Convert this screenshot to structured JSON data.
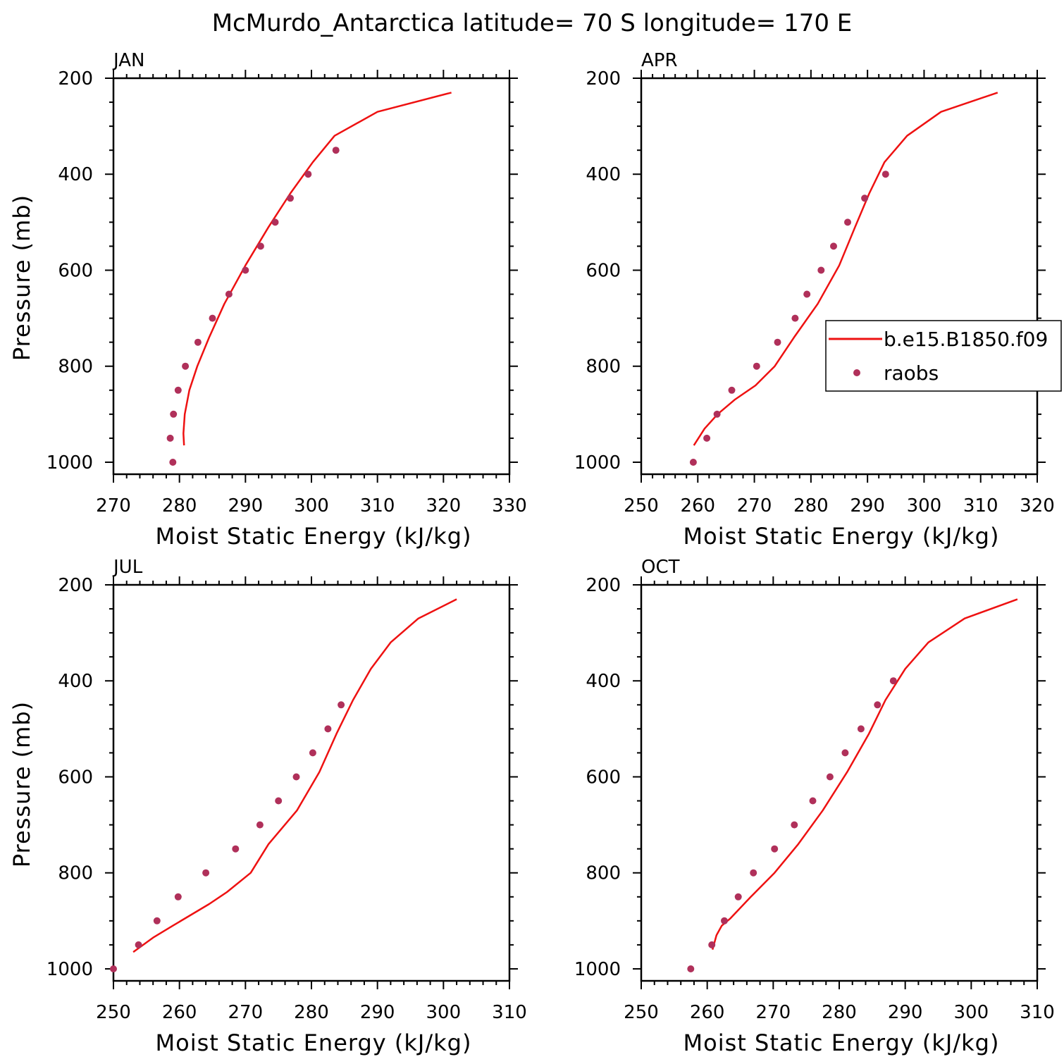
{
  "title": "McMurdo_Antarctica  latitude= 70 S longitude= 170 E",
  "colors": {
    "model": "#ee1111",
    "obs": "#b0305a",
    "axis": "#000000"
  },
  "legend": {
    "placement": "right of APR panel",
    "entries": [
      {
        "label": "b.e15.B1850.f09",
        "marker": "line",
        "color": "#ee1111"
      },
      {
        "label": "raobs",
        "marker": "dot",
        "color": "#b0305a"
      }
    ]
  },
  "chart_data": [
    {
      "type": "line",
      "title": "JAN",
      "xlabel": "Moist Static Energy (kJ/kg)",
      "ylabel": "Pressure (mb)",
      "xlim": [
        270,
        330
      ],
      "ylim": [
        1025,
        200
      ],
      "xticks": [
        270,
        280,
        290,
        300,
        310,
        320,
        330
      ],
      "yticks": [
        200,
        400,
        600,
        800,
        1000
      ],
      "grid": false,
      "series": [
        {
          "name": "b.e15.B1850.f09",
          "kind": "line",
          "points": [
            [
              321.2,
              230
            ],
            [
              310.0,
              270
            ],
            [
              303.5,
              320
            ],
            [
              300.2,
              375
            ],
            [
              296.8,
              440
            ],
            [
              293.5,
              510
            ],
            [
              290.0,
              590
            ],
            [
              286.8,
              670
            ],
            [
              284.5,
              740
            ],
            [
              282.7,
              800
            ],
            [
              281.5,
              850
            ],
            [
              280.8,
              900
            ],
            [
              280.6,
              940
            ],
            [
              280.7,
              965
            ]
          ]
        },
        {
          "name": "raobs",
          "kind": "scatter",
          "points": [
            [
              303.7,
              350
            ],
            [
              299.5,
              400
            ],
            [
              296.8,
              450
            ],
            [
              294.5,
              500
            ],
            [
              292.3,
              550
            ],
            [
              290.0,
              600
            ],
            [
              287.5,
              650
            ],
            [
              285.0,
              700
            ],
            [
              282.8,
              750
            ],
            [
              280.9,
              800
            ],
            [
              279.8,
              850
            ],
            [
              279.1,
              900
            ],
            [
              278.6,
              950
            ],
            [
              279.0,
              1000
            ]
          ]
        }
      ]
    },
    {
      "type": "line",
      "title": "APR",
      "xlabel": "Moist Static Energy (kJ/kg)",
      "ylabel": "",
      "xlim": [
        250,
        320
      ],
      "ylim": [
        1025,
        200
      ],
      "xticks": [
        250,
        260,
        270,
        280,
        290,
        300,
        310,
        320
      ],
      "yticks": [
        200,
        400,
        600,
        800,
        1000
      ],
      "grid": false,
      "series": [
        {
          "name": "b.e15.B1850.f09",
          "kind": "line",
          "points": [
            [
              313.0,
              230
            ],
            [
              303.0,
              270
            ],
            [
              297.0,
              320
            ],
            [
              293.0,
              375
            ],
            [
              290.3,
              440
            ],
            [
              287.8,
              510
            ],
            [
              285.0,
              590
            ],
            [
              281.2,
              670
            ],
            [
              277.0,
              740
            ],
            [
              273.6,
              800
            ],
            [
              270.2,
              840
            ],
            [
              266.5,
              870
            ],
            [
              263.5,
              900
            ],
            [
              261.2,
              930
            ],
            [
              259.3,
              965
            ]
          ]
        },
        {
          "name": "raobs",
          "kind": "scatter",
          "points": [
            [
              293.2,
              400
            ],
            [
              289.5,
              450
            ],
            [
              286.5,
              500
            ],
            [
              284.0,
              550
            ],
            [
              281.8,
              600
            ],
            [
              279.3,
              650
            ],
            [
              277.2,
              700
            ],
            [
              274.1,
              750
            ],
            [
              270.4,
              800
            ],
            [
              266.0,
              850
            ],
            [
              263.4,
              900
            ],
            [
              261.6,
              950
            ],
            [
              259.2,
              1000
            ]
          ]
        }
      ]
    },
    {
      "type": "line",
      "title": "JUL",
      "xlabel": "Moist Static Energy (kJ/kg)",
      "ylabel": "Pressure (mb)",
      "xlim": [
        250,
        310
      ],
      "ylim": [
        1025,
        200
      ],
      "xticks": [
        250,
        260,
        270,
        280,
        290,
        300,
        310
      ],
      "yticks": [
        200,
        400,
        600,
        800,
        1000
      ],
      "grid": false,
      "series": [
        {
          "name": "b.e15.B1850.f09",
          "kind": "line",
          "points": [
            [
              302.0,
              230
            ],
            [
              296.2,
              270
            ],
            [
              292.0,
              320
            ],
            [
              289.0,
              375
            ],
            [
              286.3,
              440
            ],
            [
              283.8,
              510
            ],
            [
              281.2,
              590
            ],
            [
              277.8,
              670
            ],
            [
              273.5,
              740
            ],
            [
              270.8,
              800
            ],
            [
              267.2,
              840
            ],
            [
              264.5,
              865
            ],
            [
              259.0,
              910
            ],
            [
              256.0,
              935
            ],
            [
              253.0,
              965
            ]
          ]
        },
        {
          "name": "raobs",
          "kind": "scatter",
          "points": [
            [
              284.5,
              450
            ],
            [
              282.5,
              500
            ],
            [
              280.2,
              550
            ],
            [
              277.7,
              600
            ],
            [
              275.0,
              650
            ],
            [
              272.2,
              700
            ],
            [
              268.5,
              750
            ],
            [
              264.0,
              800
            ],
            [
              259.8,
              850
            ],
            [
              256.6,
              900
            ],
            [
              253.8,
              950
            ],
            [
              250.0,
              1000
            ]
          ]
        }
      ]
    },
    {
      "type": "line",
      "title": "OCT",
      "xlabel": "Moist Static Energy (kJ/kg)",
      "ylabel": "",
      "xlim": [
        250,
        310
      ],
      "ylim": [
        1025,
        200
      ],
      "xticks": [
        250,
        260,
        270,
        280,
        290,
        300,
        310
      ],
      "yticks": [
        200,
        400,
        600,
        800,
        1000
      ],
      "grid": false,
      "series": [
        {
          "name": "b.e15.B1850.f09",
          "kind": "line",
          "points": [
            [
              307.0,
              230
            ],
            [
              299.0,
              270
            ],
            [
              293.5,
              320
            ],
            [
              290.0,
              375
            ],
            [
              287.0,
              440
            ],
            [
              284.5,
              510
            ],
            [
              281.2,
              590
            ],
            [
              277.5,
              670
            ],
            [
              273.8,
              740
            ],
            [
              270.2,
              800
            ],
            [
              266.6,
              850
            ],
            [
              263.5,
              895
            ],
            [
              262.2,
              910
            ],
            [
              261.4,
              930
            ],
            [
              260.8,
              960
            ]
          ]
        },
        {
          "name": "raobs",
          "kind": "scatter",
          "points": [
            [
              288.2,
              400
            ],
            [
              285.8,
              450
            ],
            [
              283.3,
              500
            ],
            [
              280.9,
              550
            ],
            [
              278.6,
              600
            ],
            [
              276.0,
              650
            ],
            [
              273.2,
              700
            ],
            [
              270.2,
              750
            ],
            [
              267.0,
              800
            ],
            [
              264.7,
              850
            ],
            [
              262.6,
              900
            ],
            [
              260.7,
              950
            ],
            [
              257.5,
              1000
            ]
          ]
        }
      ]
    }
  ]
}
